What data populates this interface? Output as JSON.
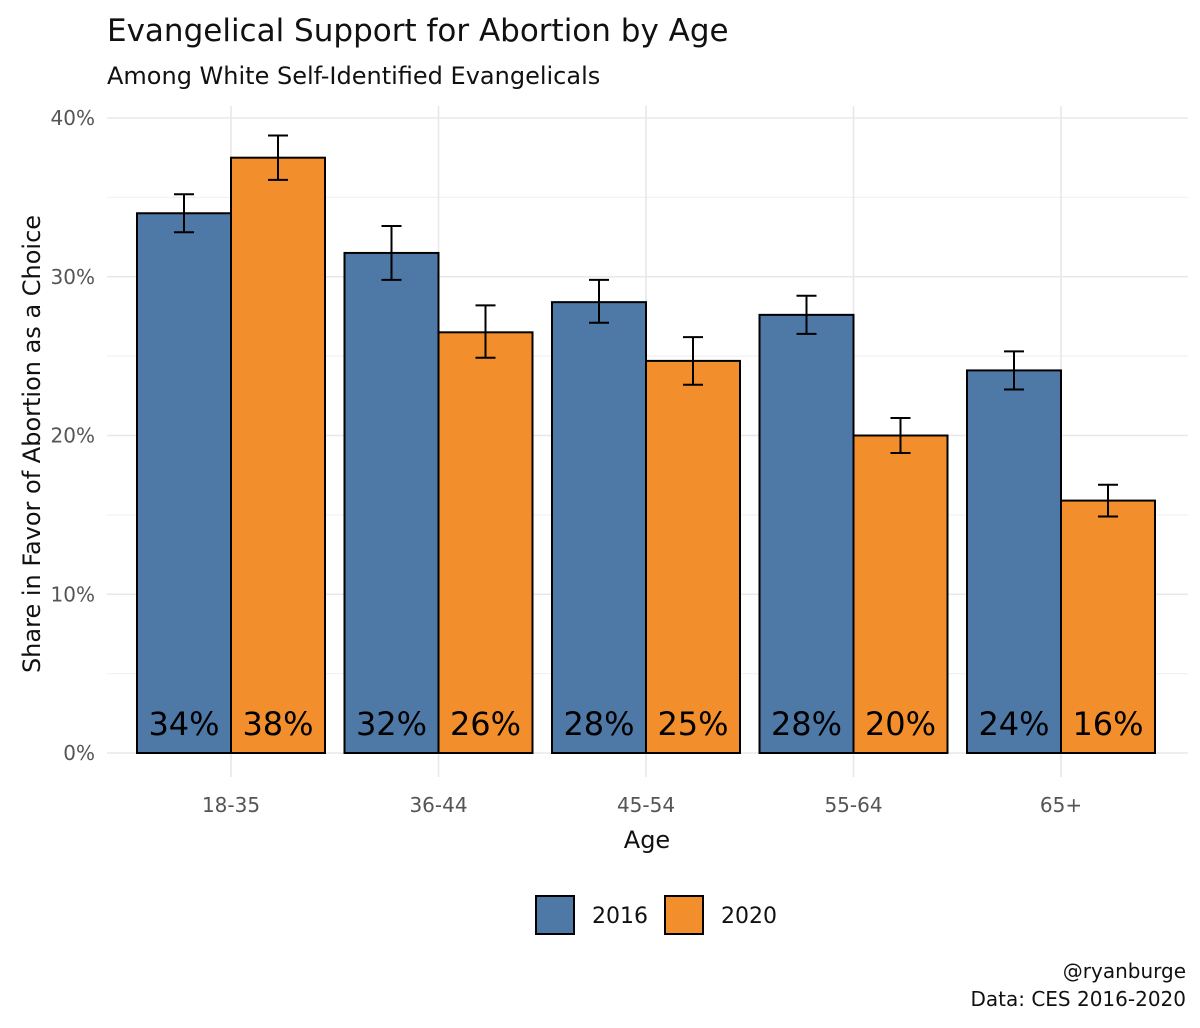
{
  "chart_data": {
    "type": "bar",
    "title": "Evangelical Support for Abortion by Age",
    "subtitle": "Among White Self-Identified Evangelicals",
    "xlabel": "Age",
    "ylabel": "Share in Favor of Abortion as a Choice",
    "categories": [
      "18-35",
      "36-44",
      "45-54",
      "55-64",
      "65+"
    ],
    "ylim": [
      0,
      0.4
    ],
    "yticks": [
      0,
      0.1,
      0.2,
      0.3,
      0.4
    ],
    "ytick_labels": [
      "0%",
      "10%",
      "20%",
      "30%",
      "40%"
    ],
    "grid": true,
    "legend_position": "bottom",
    "series": [
      {
        "name": "2016",
        "color": "#4e79a7",
        "values": [
          0.34,
          0.315,
          0.284,
          0.276,
          0.241
        ],
        "error_low": [
          0.328,
          0.298,
          0.271,
          0.264,
          0.229
        ],
        "error_high": [
          0.352,
          0.332,
          0.298,
          0.288,
          0.253
        ],
        "labels": [
          "34%",
          "32%",
          "28%",
          "28%",
          "24%"
        ]
      },
      {
        "name": "2020",
        "color": "#f28e2b",
        "values": [
          0.375,
          0.265,
          0.247,
          0.2,
          0.159
        ],
        "error_low": [
          0.361,
          0.249,
          0.232,
          0.189,
          0.149
        ],
        "error_high": [
          0.389,
          0.282,
          0.262,
          0.211,
          0.169
        ],
        "labels": [
          "38%",
          "26%",
          "25%",
          "20%",
          "16%"
        ]
      }
    ],
    "caption": [
      "@ryanburge",
      "Data: CES 2016-2020"
    ]
  }
}
